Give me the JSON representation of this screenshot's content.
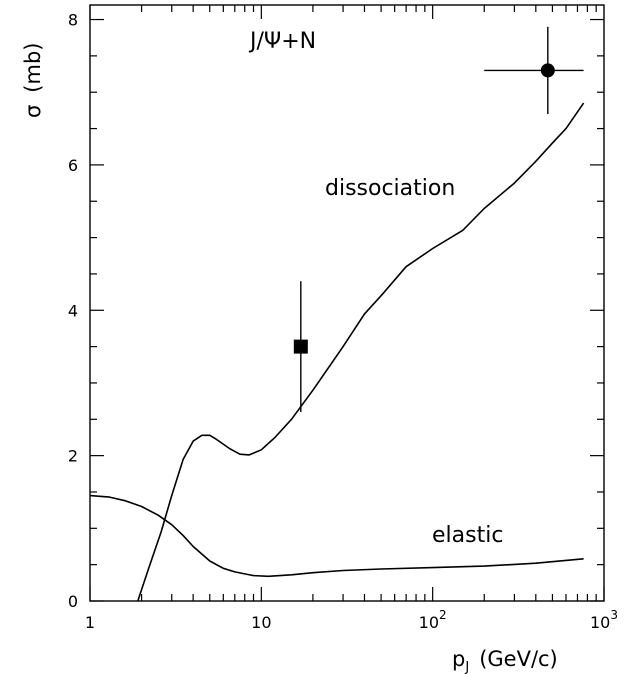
{
  "chart_data": {
    "type": "line",
    "title": "",
    "annotation_reaction": "J/Ψ+N",
    "xlabel": "p_J  (GeV/c)",
    "xlabel_main": "p",
    "xlabel_sub": "J",
    "xlabel_units": "(GeV/c)",
    "ylabel": "σ  (mb)",
    "ylabel_symbol": "σ",
    "ylabel_units": "(mb)",
    "x_scale": "log",
    "xlim": [
      1,
      1000
    ],
    "ylim": [
      0,
      8.2
    ],
    "x_ticks": [
      {
        "value": 1,
        "label": "1",
        "sup": ""
      },
      {
        "value": 10,
        "label": "10",
        "sup": ""
      },
      {
        "value": 100,
        "label": "10",
        "sup": "2"
      },
      {
        "value": 1000,
        "label": "10",
        "sup": "3"
      }
    ],
    "y_ticks": [
      {
        "value": 0,
        "label": "0"
      },
      {
        "value": 2,
        "label": "2"
      },
      {
        "value": 4,
        "label": "4"
      },
      {
        "value": 6,
        "label": "6"
      },
      {
        "value": 8,
        "label": "8"
      }
    ],
    "series": [
      {
        "name": "dissociation",
        "points": [
          [
            1.9,
            0
          ],
          [
            2.2,
            0.45
          ],
          [
            2.6,
            0.95
          ],
          [
            3.0,
            1.45
          ],
          [
            3.5,
            1.95
          ],
          [
            4.0,
            2.2
          ],
          [
            4.5,
            2.28
          ],
          [
            5.0,
            2.28
          ],
          [
            5.5,
            2.22
          ],
          [
            6.5,
            2.1
          ],
          [
            7.5,
            2.02
          ],
          [
            8.5,
            2.01
          ],
          [
            10,
            2.08
          ],
          [
            12,
            2.25
          ],
          [
            15,
            2.5
          ],
          [
            20,
            2.9
          ],
          [
            30,
            3.5
          ],
          [
            40,
            3.95
          ],
          [
            50,
            4.2
          ],
          [
            70,
            4.6
          ],
          [
            100,
            4.85
          ],
          [
            150,
            5.1
          ],
          [
            200,
            5.4
          ],
          [
            300,
            5.75
          ],
          [
            400,
            6.05
          ],
          [
            500,
            6.3
          ],
          [
            600,
            6.5
          ],
          [
            760,
            6.85
          ]
        ],
        "color": "#000000"
      },
      {
        "name": "elastic",
        "points": [
          [
            1,
            1.45
          ],
          [
            1.3,
            1.43
          ],
          [
            1.6,
            1.38
          ],
          [
            2.0,
            1.3
          ],
          [
            2.5,
            1.18
          ],
          [
            3.0,
            1.05
          ],
          [
            3.5,
            0.9
          ],
          [
            4.0,
            0.75
          ],
          [
            5.0,
            0.55
          ],
          [
            6.0,
            0.45
          ],
          [
            7.0,
            0.4
          ],
          [
            9.0,
            0.35
          ],
          [
            11,
            0.34
          ],
          [
            15,
            0.36
          ],
          [
            20,
            0.39
          ],
          [
            30,
            0.42
          ],
          [
            50,
            0.44
          ],
          [
            100,
            0.46
          ],
          [
            200,
            0.48
          ],
          [
            400,
            0.52
          ],
          [
            760,
            0.58
          ]
        ],
        "color": "#000000"
      }
    ],
    "data_points": [
      {
        "marker": "square",
        "x": 17,
        "y": 3.5,
        "yerr": [
          2.6,
          4.4
        ],
        "xerr": null
      },
      {
        "marker": "circle",
        "x": 470,
        "y": 7.3,
        "yerr": [
          6.7,
          7.9
        ],
        "xerr": [
          200,
          760
        ]
      }
    ],
    "labels": {
      "dissociation": "dissociation",
      "elastic": "elastic"
    },
    "grid": false,
    "legend": "none"
  }
}
